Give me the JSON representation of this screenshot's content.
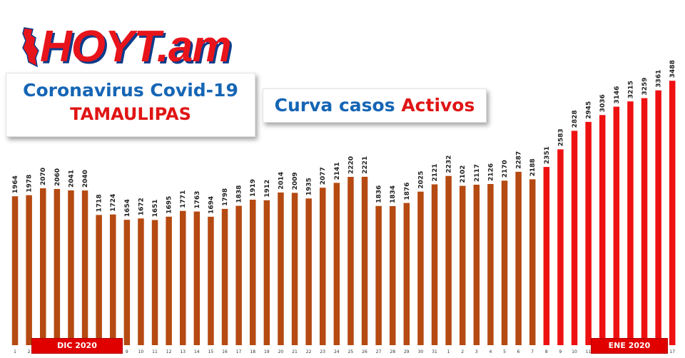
{
  "logo": {
    "text": "HOYT.am",
    "colors": {
      "text": "#e8141b",
      "shadow": "#0b3c8c"
    }
  },
  "title": {
    "line1": "Coronavirus Covid-19",
    "line2": "TAMAULIPAS"
  },
  "subtitle": {
    "part1": "Curva casos",
    "part2": "Activos"
  },
  "month_labels": {
    "dec": "DIC 2020",
    "jan": "ENE 2020"
  },
  "chart_data": {
    "type": "bar",
    "title": "Curva casos Activos",
    "categories": [
      "1",
      "2",
      "3",
      "4",
      "5",
      "6",
      "7",
      "8",
      "9",
      "10",
      "11",
      "12",
      "13",
      "14",
      "15",
      "16",
      "17",
      "18",
      "19",
      "20",
      "21",
      "22",
      "23",
      "24",
      "25",
      "26",
      "27",
      "28",
      "29",
      "30",
      "31",
      "1",
      "2",
      "3",
      "4",
      "5",
      "6",
      "7",
      "8",
      "9",
      "10",
      "11",
      "12",
      "13",
      "14",
      "15",
      "16",
      "17"
    ],
    "values": [
      1964,
      1978,
      2070,
      2060,
      2041,
      2040,
      1718,
      1724,
      1654,
      1672,
      1651,
      1695,
      1771,
      1763,
      1694,
      1798,
      1838,
      1919,
      1912,
      2014,
      2009,
      1935,
      2077,
      2141,
      2220,
      2221,
      1836,
      1834,
      1876,
      2025,
      2121,
      2232,
      2102,
      2117,
      2126,
      2170,
      2287,
      2188,
      2351,
      2583,
      2828,
      2945,
      3036,
      3146,
      3215,
      3259,
      3361,
      3488
    ],
    "colors": {
      "december": "#b54a12",
      "january_early": "#b54a12",
      "january_late": "#ee1111"
    },
    "red_from_index": 38,
    "ylim": [
      0,
      3700
    ],
    "grid": false,
    "data_labels": true
  }
}
